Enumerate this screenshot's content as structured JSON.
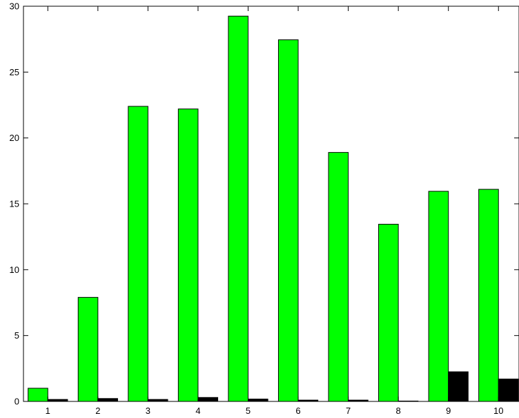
{
  "chart_data": {
    "type": "bar",
    "categories": [
      "1",
      "2",
      "3",
      "4",
      "5",
      "6",
      "7",
      "8",
      "9",
      "10"
    ],
    "series": [
      {
        "color": "#00ff00",
        "values": [
          1.0,
          7.9,
          22.4,
          22.2,
          29.25,
          27.45,
          18.9,
          13.45,
          15.95,
          16.1
        ]
      },
      {
        "color": "#000000",
        "values": [
          0.15,
          0.22,
          0.15,
          0.3,
          0.18,
          0.1,
          0.1,
          0.03,
          2.25,
          1.7
        ]
      }
    ],
    "ylim": [
      0,
      30
    ],
    "yticks": [
      "0",
      "5",
      "10",
      "15",
      "20",
      "25",
      "30"
    ],
    "title": "",
    "xlabel": "",
    "ylabel": "",
    "grid": false,
    "legend": "none"
  }
}
